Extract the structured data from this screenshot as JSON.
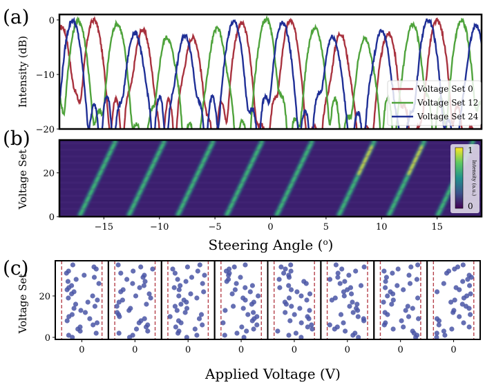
{
  "panel_labels": [
    "(a)",
    "(b)",
    "(c)"
  ],
  "chart_data": [
    {
      "type": "line",
      "panel": "(a)",
      "xlabel": "",
      "ylabel": "Intensity (dB)",
      "xlim": [
        -19,
        19
      ],
      "ylim": [
        -20,
        1
      ],
      "yticks": [
        0,
        -10,
        -20
      ],
      "legend_position": "lower-right",
      "series": [
        {
          "name": "Voltage Set 0",
          "color": "#a8323e",
          "peaks_deg": [
            -18.8,
            -15.9,
            -11.5,
            -7.0,
            -2.6,
            1.8,
            6.3,
            10.6,
            15.0
          ]
        },
        {
          "name": "Voltage Set 12",
          "color": "#4fa33c",
          "peaks_deg": [
            -17.3,
            -13.8,
            -9.3,
            -4.8,
            -0.4,
            4.0,
            8.5,
            12.8,
            17.2
          ]
        },
        {
          "name": "Voltage Set 24",
          "color": "#1f2f96",
          "peaks_deg": [
            -17.8,
            -12.2,
            -7.7,
            -3.3,
            1.1,
            5.6,
            10.0,
            14.2,
            18.5
          ]
        }
      ]
    },
    {
      "type": "heatmap",
      "panel": "(b)",
      "xlabel": "Steering Angle (o)",
      "ylabel": "Voltage Set",
      "xlim": [
        -19,
        19
      ],
      "ylim": [
        0,
        35
      ],
      "xticks": [
        -15,
        -10,
        -5,
        0,
        5,
        10,
        15
      ],
      "yticks": [
        0,
        20
      ],
      "colorbar": {
        "label": "Intensity (a.u.)",
        "min_label": "0",
        "max_label": "1"
      },
      "ridges": [
        {
          "angle_at_set0": -17.2,
          "angle_at_set35": -13.9
        },
        {
          "angle_at_set0": -12.8,
          "angle_at_set35": -9.5
        },
        {
          "angle_at_set0": -8.4,
          "angle_at_set35": -5.1
        },
        {
          "angle_at_set0": -4.0,
          "angle_at_set35": -0.7
        },
        {
          "angle_at_set0": 0.5,
          "angle_at_set35": 3.8
        },
        {
          "angle_at_set0": 6.1,
          "angle_at_set35": 9.4
        },
        {
          "angle_at_set0": 10.6,
          "angle_at_set35": 13.9
        },
        {
          "angle_at_set0": 15.0,
          "angle_at_set35": 18.3
        }
      ]
    },
    {
      "type": "scatter",
      "panel": "(c)",
      "xlabel": "Applied Voltage (V)",
      "ylabel": "Voltage Set",
      "ylim": [
        -1,
        37
      ],
      "yticks": [
        0,
        20
      ],
      "xtick_label": "0",
      "subplot_count": 8,
      "dot_color": "#4a56a6",
      "bound_line_color": "#b5404a"
    }
  ]
}
